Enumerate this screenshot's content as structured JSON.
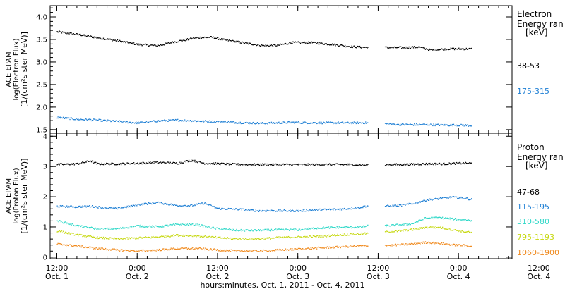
{
  "chart_data": [
    {
      "type": "scatter",
      "panel": "electron",
      "ylabel_lines": [
        "ACE EPAM",
        "log(Electron Flux)",
        "[1/(cm²s ster MeV)]"
      ],
      "legend_title": [
        "Electron",
        "Energy ran",
        "[keV]"
      ],
      "ylim": [
        1.42,
        4.25
      ],
      "yticks": [
        1.5,
        2,
        2.5,
        3,
        3.5,
        4
      ],
      "ytick_labels": [
        "1.5",
        "2.0",
        "2.5",
        "3.0",
        "3.5",
        "4.0"
      ],
      "series": [
        {
          "name": "38-53",
          "color": "#000000",
          "points": [
            [
              0,
              3.68
            ],
            [
              6,
              3.62
            ],
            [
              12,
              3.55
            ],
            [
              18,
              3.48
            ],
            [
              24,
              3.4
            ],
            [
              30,
              3.37
            ],
            [
              36,
              3.47
            ],
            [
              42,
              3.55
            ],
            [
              46,
              3.56
            ],
            [
              50,
              3.5
            ],
            [
              56,
              3.43
            ],
            [
              62,
              3.37
            ],
            [
              66,
              3.38
            ],
            [
              70,
              3.44
            ],
            [
              76,
              3.44
            ],
            [
              82,
              3.4
            ],
            [
              88,
              3.35
            ],
            [
              93,
              3.33
            ],
            [
              95,
              null
            ],
            [
              98,
              3.33
            ],
            [
              104,
              3.33
            ],
            [
              108,
              3.34
            ],
            [
              112,
              3.27
            ],
            [
              116,
              3.3
            ],
            [
              120,
              3.3
            ],
            [
              124,
              3.3
            ]
          ]
        },
        {
          "name": "175-315",
          "color": "#1e7fd4",
          "points": [
            [
              0,
              1.78
            ],
            [
              6,
              1.74
            ],
            [
              12,
              1.72
            ],
            [
              18,
              1.69
            ],
            [
              24,
              1.66
            ],
            [
              30,
              1.7
            ],
            [
              36,
              1.72
            ],
            [
              42,
              1.7
            ],
            [
              50,
              1.68
            ],
            [
              56,
              1.66
            ],
            [
              62,
              1.65
            ],
            [
              70,
              1.67
            ],
            [
              76,
              1.66
            ],
            [
              82,
              1.66
            ],
            [
              88,
              1.66
            ],
            [
              93,
              1.66
            ],
            [
              95,
              null
            ],
            [
              98,
              1.64
            ],
            [
              104,
              1.62
            ],
            [
              110,
              1.62
            ],
            [
              116,
              1.61
            ],
            [
              120,
              1.61
            ],
            [
              124,
              1.6
            ]
          ]
        }
      ]
    },
    {
      "type": "scatter",
      "panel": "proton",
      "ylabel_lines": [
        "ACE EPAM",
        "log(Proton Flux)",
        "[1/(cm²s ster MeV)]"
      ],
      "legend_title": [
        "Proton",
        "Energy ran",
        "[keV]"
      ],
      "ylim": [
        -0.05,
        4.1
      ],
      "yticks": [
        0,
        1,
        2,
        3,
        4
      ],
      "ytick_labels": [
        "0",
        "1",
        "2",
        "3",
        "4"
      ],
      "series": [
        {
          "name": "47-68",
          "color": "#000000",
          "points": [
            [
              0,
              3.08
            ],
            [
              6,
              3.1
            ],
            [
              10,
              3.2
            ],
            [
              12,
              3.1
            ],
            [
              18,
              3.1
            ],
            [
              24,
              3.12
            ],
            [
              30,
              3.15
            ],
            [
              36,
              3.12
            ],
            [
              40,
              3.22
            ],
            [
              44,
              3.12
            ],
            [
              50,
              3.1
            ],
            [
              56,
              3.08
            ],
            [
              62,
              3.08
            ],
            [
              70,
              3.08
            ],
            [
              76,
              3.08
            ],
            [
              82,
              3.08
            ],
            [
              88,
              3.08
            ],
            [
              93,
              3.05
            ],
            [
              95,
              null
            ],
            [
              98,
              3.08
            ],
            [
              104,
              3.08
            ],
            [
              110,
              3.1
            ],
            [
              116,
              3.1
            ],
            [
              120,
              3.12
            ],
            [
              124,
              3.12
            ]
          ]
        },
        {
          "name": "115-195",
          "color": "#1e7fd4",
          "points": [
            [
              0,
              1.7
            ],
            [
              6,
              1.68
            ],
            [
              10,
              1.7
            ],
            [
              14,
              1.65
            ],
            [
              18,
              1.62
            ],
            [
              24,
              1.75
            ],
            [
              30,
              1.82
            ],
            [
              36,
              1.72
            ],
            [
              40,
              1.72
            ],
            [
              44,
              1.8
            ],
            [
              48,
              1.62
            ],
            [
              54,
              1.6
            ],
            [
              60,
              1.55
            ],
            [
              66,
              1.55
            ],
            [
              72,
              1.55
            ],
            [
              78,
              1.58
            ],
            [
              84,
              1.6
            ],
            [
              90,
              1.65
            ],
            [
              93,
              1.72
            ],
            [
              95,
              null
            ],
            [
              98,
              1.7
            ],
            [
              102,
              1.72
            ],
            [
              106,
              1.78
            ],
            [
              110,
              1.9
            ],
            [
              114,
              1.95
            ],
            [
              118,
              2.0
            ],
            [
              122,
              1.96
            ],
            [
              124,
              1.92
            ]
          ]
        },
        {
          "name": "310-580",
          "color": "#2fd8c8",
          "points": [
            [
              0,
              1.22
            ],
            [
              6,
              1.05
            ],
            [
              12,
              0.95
            ],
            [
              18,
              0.95
            ],
            [
              24,
              1.05
            ],
            [
              30,
              1.02
            ],
            [
              36,
              1.1
            ],
            [
              42,
              1.08
            ],
            [
              48,
              0.95
            ],
            [
              54,
              0.9
            ],
            [
              60,
              0.9
            ],
            [
              66,
              0.92
            ],
            [
              72,
              0.92
            ],
            [
              78,
              0.98
            ],
            [
              84,
              1.0
            ],
            [
              90,
              1.0
            ],
            [
              93,
              1.05
            ],
            [
              95,
              null
            ],
            [
              98,
              1.05
            ],
            [
              102,
              1.08
            ],
            [
              106,
              1.12
            ],
            [
              110,
              1.3
            ],
            [
              114,
              1.32
            ],
            [
              118,
              1.28
            ],
            [
              122,
              1.25
            ],
            [
              124,
              1.22
            ]
          ]
        },
        {
          "name": "795-1193",
          "color": "#c6d80f",
          "points": [
            [
              0,
              0.88
            ],
            [
              6,
              0.75
            ],
            [
              12,
              0.66
            ],
            [
              18,
              0.62
            ],
            [
              24,
              0.65
            ],
            [
              30,
              0.68
            ],
            [
              36,
              0.74
            ],
            [
              42,
              0.72
            ],
            [
              48,
              0.66
            ],
            [
              54,
              0.62
            ],
            [
              60,
              0.62
            ],
            [
              66,
              0.66
            ],
            [
              72,
              0.68
            ],
            [
              78,
              0.7
            ],
            [
              84,
              0.75
            ],
            [
              90,
              0.78
            ],
            [
              93,
              0.8
            ],
            [
              95,
              null
            ],
            [
              98,
              0.84
            ],
            [
              102,
              0.88
            ],
            [
              106,
              0.92
            ],
            [
              110,
              1.0
            ],
            [
              114,
              1.0
            ],
            [
              118,
              0.92
            ],
            [
              122,
              0.85
            ],
            [
              124,
              0.82
            ]
          ]
        },
        {
          "name": "1060-1900",
          "color": "#f08a1e",
          "points": [
            [
              0,
              0.45
            ],
            [
              6,
              0.38
            ],
            [
              12,
              0.3
            ],
            [
              18,
              0.25
            ],
            [
              24,
              0.22
            ],
            [
              30,
              0.25
            ],
            [
              36,
              0.3
            ],
            [
              42,
              0.3
            ],
            [
              48,
              0.25
            ],
            [
              54,
              0.22
            ],
            [
              60,
              0.22
            ],
            [
              66,
              0.25
            ],
            [
              72,
              0.28
            ],
            [
              78,
              0.32
            ],
            [
              84,
              0.35
            ],
            [
              90,
              0.38
            ],
            [
              93,
              0.4
            ],
            [
              95,
              null
            ],
            [
              98,
              0.4
            ],
            [
              102,
              0.42
            ],
            [
              106,
              0.45
            ],
            [
              110,
              0.5
            ],
            [
              114,
              0.48
            ],
            [
              118,
              0.42
            ],
            [
              122,
              0.4
            ],
            [
              124,
              0.38
            ]
          ]
        }
      ]
    }
  ],
  "x_axis": {
    "xlim": [
      -2,
      136
    ],
    "ticks": [
      {
        "h": 0,
        "time": "12:00",
        "date": "Oct. 1"
      },
      {
        "h": 24,
        "time": "0:00",
        "date": "Oct. 2"
      },
      {
        "h": 48,
        "time": "12:00",
        "date": "Oct. 2"
      },
      {
        "h": 72,
        "time": "0:00",
        "date": "Oct. 3"
      },
      {
        "h": 96,
        "time": "12:00",
        "date": "Oct. 3"
      },
      {
        "h": 120,
        "time": "0:00",
        "date": "Oct. 4"
      },
      {
        "h": 144,
        "time": "12:00",
        "date": "Oct. 4"
      }
    ],
    "xlabel": "hours:minutes, Oct.  1, 2011 - Oct.  4, 2011"
  }
}
